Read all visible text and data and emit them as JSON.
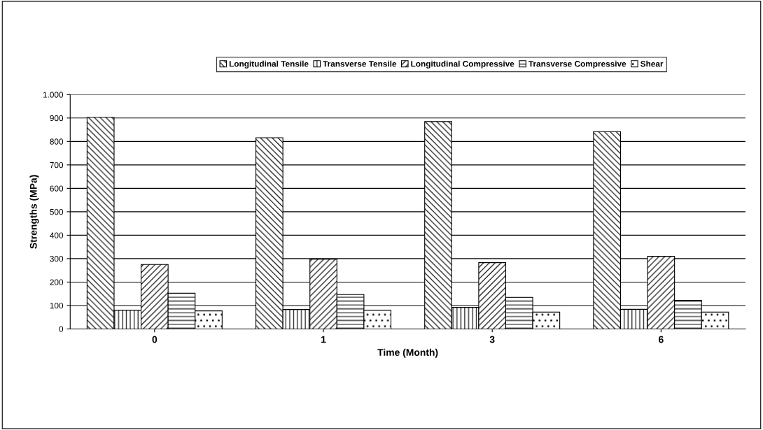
{
  "chart_data": {
    "type": "bar",
    "xlabel": "Time (Month)",
    "ylabel": "Strengths (MPa)",
    "categories": [
      "0",
      "1",
      "3",
      "6"
    ],
    "series": [
      {
        "name": "Longitudinal Tensile",
        "color": "#000000",
        "values": [
          903,
          816,
          885,
          842
        ]
      },
      {
        "name": "Transverse Tensile",
        "color": "#000000",
        "values": [
          80,
          83,
          92,
          84
        ]
      },
      {
        "name": "Longitudinal Compressive",
        "color": "#000000",
        "values": [
          275,
          298,
          283,
          310
        ]
      },
      {
        "name": "Transverse Compressive",
        "color": "#000000",
        "values": [
          153,
          147,
          135,
          122
        ]
      },
      {
        "name": "Shear",
        "color": "#000000",
        "values": [
          77,
          80,
          72,
          72
        ]
      }
    ],
    "ylim": [
      0,
      1000
    ],
    "yticks": [
      0,
      100,
      200,
      300,
      400,
      500,
      600,
      700,
      800,
      900,
      {
        "value": 1000,
        "label": "1.000"
      }
    ],
    "grid": "y",
    "legend": "top"
  }
}
